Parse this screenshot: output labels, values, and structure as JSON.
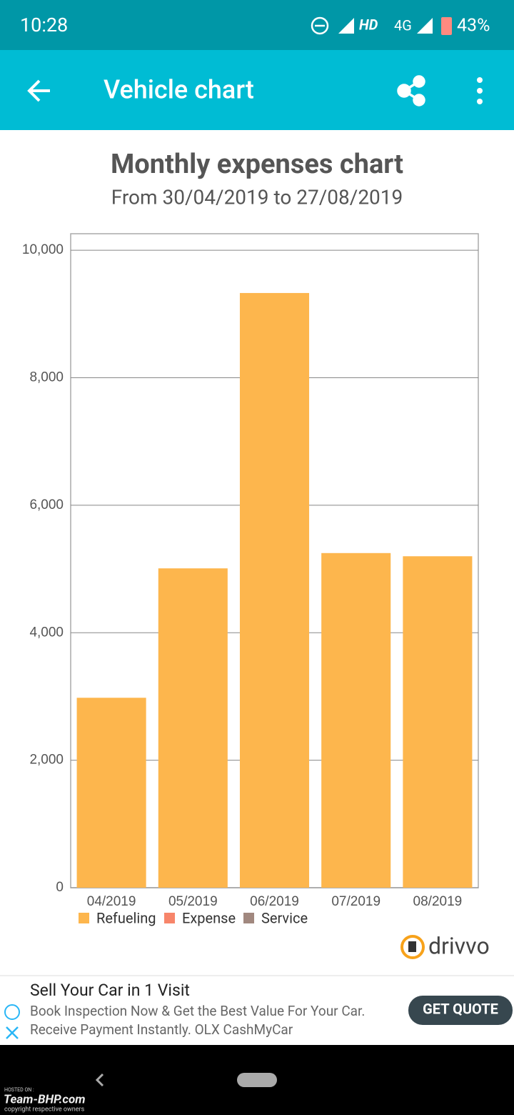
{
  "status_bar": {
    "time": "10:28",
    "network": "HD",
    "signal": "4G",
    "battery": "43%"
  },
  "app_bar": {
    "title": "Vehicle chart"
  },
  "chart_data": {
    "type": "bar",
    "stacked": true,
    "title": "Monthly expenses chart",
    "subtitle": "From 30/04/2019 to 27/08/2019",
    "categories": [
      "04/2019",
      "05/2019",
      "06/2019",
      "07/2019",
      "08/2019"
    ],
    "series": [
      {
        "name": "Refueling",
        "color": "#fdb64d",
        "values": [
          2980,
          5010,
          9330,
          5250,
          5200
        ]
      },
      {
        "name": "Expense",
        "color": "#f7856a",
        "values": [
          0,
          0,
          0,
          0,
          0
        ]
      },
      {
        "name": "Service",
        "color": "#a1887f",
        "values": [
          0,
          0,
          0,
          0,
          0
        ]
      }
    ],
    "ylim": [
      0,
      10260
    ],
    "yticks": [
      0,
      {
        "value": 2000,
        "label": "2,000"
      },
      {
        "value": 4000,
        "label": "4,000"
      },
      {
        "value": 6000,
        "label": "6,000"
      },
      {
        "value": 8000,
        "label": "8,000"
      },
      {
        "value": 10000,
        "label": "10,000"
      }
    ],
    "grid": true,
    "legend": "bottom-left"
  },
  "brand": "drivvo",
  "ad": {
    "title": "Sell Your Car in 1 Visit",
    "line1": "Book Inspection Now & Get the Best Value For Your Car.",
    "line2": "Receive Payment Instantly. OLX CashMyCar",
    "button": "GET QUOTE"
  },
  "watermark": {
    "hosted": "HOSTED ON :",
    "site": "Team-BHP.com",
    "note": "copyright respective owners"
  }
}
